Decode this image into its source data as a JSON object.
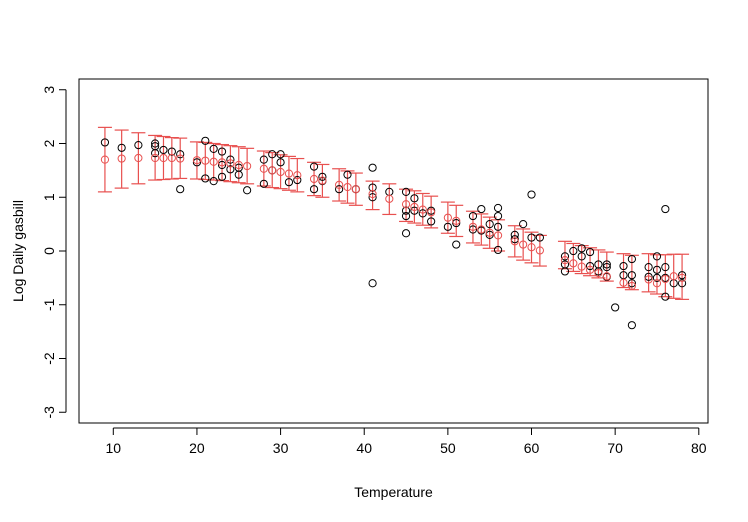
{
  "chart_data": {
    "type": "scatter",
    "title": "",
    "xlabel": "Temperature",
    "ylabel": "Log Daily gasbill",
    "xlim": [
      5.9,
      81.1
    ],
    "ylim": [
      -3.2,
      3.2
    ],
    "xticks": [
      10,
      20,
      30,
      40,
      50,
      60,
      70,
      80
    ],
    "yticks": [
      -3,
      -2,
      -1,
      0,
      1,
      2,
      3
    ],
    "grid": false,
    "legend": "none",
    "colors": {
      "observed": "#000000",
      "fitted": "#e8504f",
      "interval": "#e8504f"
    },
    "series": [
      {
        "role": "observed",
        "points": [
          [
            9,
            2.02
          ],
          [
            11,
            1.92
          ],
          [
            13,
            1.97
          ],
          [
            15,
            2.0
          ],
          [
            15,
            1.95
          ],
          [
            15,
            1.82
          ],
          [
            16,
            1.88
          ],
          [
            17,
            1.85
          ],
          [
            18,
            1.8
          ],
          [
            18,
            1.15
          ],
          [
            20,
            1.65
          ],
          [
            21,
            2.05
          ],
          [
            21,
            1.35
          ],
          [
            22,
            1.9
          ],
          [
            22,
            1.3
          ],
          [
            23,
            1.85
          ],
          [
            23,
            1.6
          ],
          [
            23,
            1.38
          ],
          [
            24,
            1.7
          ],
          [
            24,
            1.52
          ],
          [
            25,
            1.55
          ],
          [
            25,
            1.42
          ],
          [
            26,
            1.13
          ],
          [
            28,
            1.7
          ],
          [
            28,
            1.25
          ],
          [
            29,
            1.8
          ],
          [
            29,
            1.5
          ],
          [
            30,
            1.8
          ],
          [
            30,
            1.65
          ],
          [
            31,
            1.28
          ],
          [
            32,
            1.32
          ],
          [
            34,
            1.57
          ],
          [
            34,
            1.15
          ],
          [
            35,
            1.38
          ],
          [
            35,
            1.3
          ],
          [
            37,
            1.15
          ],
          [
            38,
            1.42
          ],
          [
            39,
            1.15
          ],
          [
            41,
            1.55
          ],
          [
            41,
            1.18
          ],
          [
            41,
            1.0
          ],
          [
            41,
            -0.6
          ],
          [
            43,
            1.1
          ],
          [
            45,
            1.1
          ],
          [
            45,
            0.75
          ],
          [
            45,
            0.65
          ],
          [
            45,
            0.33
          ],
          [
            46,
            0.98
          ],
          [
            46,
            0.75
          ],
          [
            47,
            0.7
          ],
          [
            48,
            0.75
          ],
          [
            48,
            0.55
          ],
          [
            50,
            0.45
          ],
          [
            51,
            0.52
          ],
          [
            51,
            0.12
          ],
          [
            53,
            0.65
          ],
          [
            53,
            0.4
          ],
          [
            54,
            0.78
          ],
          [
            54,
            0.38
          ],
          [
            55,
            0.5
          ],
          [
            55,
            0.3
          ],
          [
            56,
            0.8
          ],
          [
            56,
            0.65
          ],
          [
            56,
            0.45
          ],
          [
            56,
            0.02
          ],
          [
            58,
            0.3
          ],
          [
            58,
            0.22
          ],
          [
            59,
            0.5
          ],
          [
            60,
            1.05
          ],
          [
            60,
            0.25
          ],
          [
            61,
            0.25
          ],
          [
            64,
            -0.1
          ],
          [
            64,
            -0.25
          ],
          [
            64,
            -0.38
          ],
          [
            65,
            0.0
          ],
          [
            66,
            0.05
          ],
          [
            66,
            -0.1
          ],
          [
            67,
            -0.02
          ],
          [
            67,
            -0.28
          ],
          [
            68,
            -0.25
          ],
          [
            68,
            -0.38
          ],
          [
            69,
            -0.25
          ],
          [
            69,
            -0.3
          ],
          [
            69,
            -0.48
          ],
          [
            70,
            -1.05
          ],
          [
            71,
            -0.28
          ],
          [
            71,
            -0.45
          ],
          [
            72,
            -0.15
          ],
          [
            72,
            -0.45
          ],
          [
            72,
            -0.6
          ],
          [
            72,
            -1.38
          ],
          [
            74,
            -0.3
          ],
          [
            74,
            -0.48
          ],
          [
            75,
            -0.1
          ],
          [
            75,
            -0.35
          ],
          [
            75,
            -0.5
          ],
          [
            76,
            0.78
          ],
          [
            76,
            -0.3
          ],
          [
            76,
            -0.5
          ],
          [
            76,
            -0.85
          ],
          [
            77,
            -0.6
          ],
          [
            78,
            -0.45
          ],
          [
            78,
            -0.6
          ]
        ]
      },
      {
        "role": "fitted",
        "points": [
          [
            9,
            1.7
          ],
          [
            11,
            1.72
          ],
          [
            13,
            1.73
          ],
          [
            15,
            1.73
          ],
          [
            16,
            1.73
          ],
          [
            17,
            1.73
          ],
          [
            18,
            1.72
          ],
          [
            20,
            1.69
          ],
          [
            21,
            1.68
          ],
          [
            22,
            1.66
          ],
          [
            23,
            1.65
          ],
          [
            24,
            1.63
          ],
          [
            25,
            1.6
          ],
          [
            26,
            1.58
          ],
          [
            28,
            1.53
          ],
          [
            29,
            1.5
          ],
          [
            30,
            1.47
          ],
          [
            31,
            1.44
          ],
          [
            32,
            1.41
          ],
          [
            34,
            1.34
          ],
          [
            35,
            1.31
          ],
          [
            37,
            1.23
          ],
          [
            38,
            1.19
          ],
          [
            39,
            1.15
          ],
          [
            41,
            1.06
          ],
          [
            43,
            0.97
          ],
          [
            45,
            0.87
          ],
          [
            46,
            0.82
          ],
          [
            47,
            0.77
          ],
          [
            48,
            0.72
          ],
          [
            50,
            0.62
          ],
          [
            51,
            0.56
          ],
          [
            53,
            0.45
          ],
          [
            54,
            0.4
          ],
          [
            55,
            0.34
          ],
          [
            56,
            0.29
          ],
          [
            58,
            0.18
          ],
          [
            59,
            0.12
          ],
          [
            60,
            0.07
          ],
          [
            61,
            0.01
          ],
          [
            64,
            -0.17
          ],
          [
            65,
            -0.23
          ],
          [
            66,
            -0.29
          ],
          [
            67,
            -0.35
          ],
          [
            68,
            -0.41
          ],
          [
            69,
            -0.47
          ],
          [
            71,
            -0.59
          ],
          [
            72,
            -0.65
          ],
          [
            74,
            -0.53
          ],
          [
            75,
            -0.6
          ],
          [
            76,
            -0.52
          ],
          [
            77,
            -0.47
          ],
          [
            78,
            -0.5
          ]
        ]
      }
    ],
    "intervals": [
      [
        9,
        1.1,
        2.3
      ],
      [
        11,
        1.17,
        2.25
      ],
      [
        13,
        1.25,
        2.2
      ],
      [
        15,
        1.32,
        2.15
      ],
      [
        16,
        1.33,
        2.13
      ],
      [
        17,
        1.34,
        2.11
      ],
      [
        18,
        1.35,
        2.1
      ],
      [
        20,
        1.34,
        2.03
      ],
      [
        21,
        1.33,
        2.02
      ],
      [
        22,
        1.32,
        2.0
      ],
      [
        23,
        1.31,
        1.98
      ],
      [
        24,
        1.29,
        1.96
      ],
      [
        25,
        1.27,
        1.94
      ],
      [
        26,
        1.25,
        1.91
      ],
      [
        28,
        1.21,
        1.86
      ],
      [
        29,
        1.18,
        1.83
      ],
      [
        30,
        1.16,
        1.79
      ],
      [
        31,
        1.13,
        1.76
      ],
      [
        32,
        1.1,
        1.72
      ],
      [
        34,
        1.03,
        1.65
      ],
      [
        35,
        1.0,
        1.61
      ],
      [
        37,
        0.93,
        1.53
      ],
      [
        38,
        0.89,
        1.49
      ],
      [
        39,
        0.85,
        1.45
      ],
      [
        41,
        0.77,
        1.3
      ],
      [
        43,
        0.68,
        1.25
      ],
      [
        45,
        0.55,
        1.15
      ],
      [
        46,
        0.52,
        1.12
      ],
      [
        47,
        0.48,
        1.07
      ],
      [
        48,
        0.43,
        1.02
      ],
      [
        50,
        0.33,
        0.91
      ],
      [
        51,
        0.27,
        0.85
      ],
      [
        53,
        0.15,
        0.74
      ],
      [
        54,
        0.11,
        0.69
      ],
      [
        55,
        0.05,
        0.63
      ],
      [
        56,
        0.0,
        0.58
      ],
      [
        58,
        -0.11,
        0.47
      ],
      [
        59,
        -0.17,
        0.41
      ],
      [
        60,
        -0.22,
        0.35
      ],
      [
        61,
        -0.28,
        0.29
      ],
      [
        64,
        -0.33,
        0.18
      ],
      [
        65,
        -0.38,
        0.14
      ],
      [
        66,
        -0.42,
        0.1
      ],
      [
        67,
        -0.46,
        0.06
      ],
      [
        68,
        -0.5,
        0.02
      ],
      [
        69,
        -0.56,
        -0.02
      ],
      [
        71,
        -0.68,
        -0.05
      ],
      [
        72,
        -0.72,
        -0.08
      ],
      [
        74,
        -0.76,
        -0.05
      ],
      [
        75,
        -0.8,
        -0.07
      ],
      [
        76,
        -0.85,
        -0.07
      ],
      [
        77,
        -0.88,
        -0.06
      ],
      [
        78,
        -0.9,
        -0.06
      ]
    ]
  }
}
